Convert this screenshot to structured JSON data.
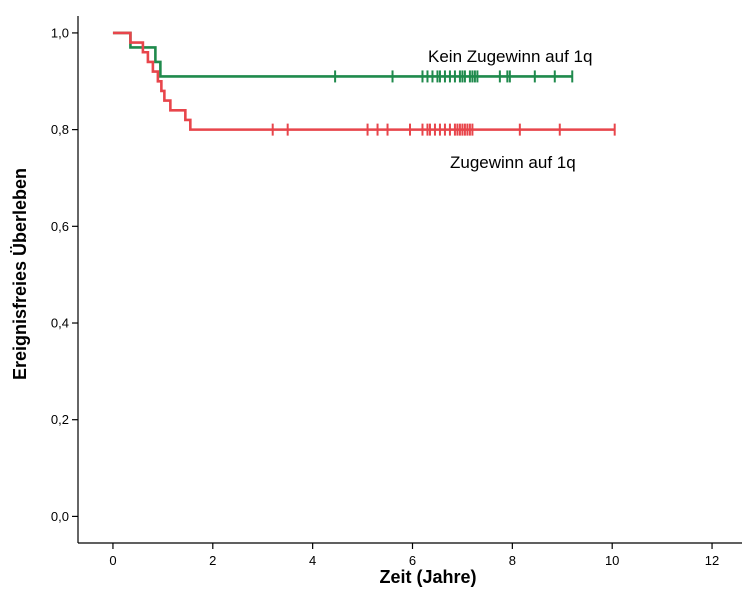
{
  "chart_data": {
    "type": "line",
    "subtype": "kaplan-meier",
    "xlabel": "Zeit (Jahre)",
    "ylabel": "Ereignisfreies Überleben",
    "xlim": [
      -0.7,
      12.6
    ],
    "ylim": [
      -0.055,
      1.035
    ],
    "x_ticks": [
      "0",
      "2",
      "4",
      "6",
      "8",
      "10",
      "12"
    ],
    "y_ticks": [
      "0,0",
      "0,2",
      "0,4",
      "0,6",
      "0,8",
      "1,0"
    ],
    "grid": false,
    "legend": "none",
    "series": [
      {
        "name": "Kein Zugewinn auf 1q",
        "color": "#1f8a4c",
        "steps": [
          [
            0,
            1.0
          ],
          [
            0.35,
            0.97
          ],
          [
            0.85,
            0.94
          ],
          [
            0.95,
            0.91
          ],
          [
            9.2,
            0.91
          ]
        ],
        "censored": [
          4.45,
          5.6,
          6.2,
          6.3,
          6.4,
          6.5,
          6.55,
          6.65,
          6.75,
          6.85,
          6.95,
          7.0,
          7.05,
          7.15,
          7.2,
          7.25,
          7.3,
          7.75,
          7.9,
          7.95,
          8.45,
          8.85,
          9.2
        ]
      },
      {
        "name": "Zugewinn auf 1q",
        "color": "#e8454b",
        "steps": [
          [
            0,
            1.0
          ],
          [
            0.35,
            0.98
          ],
          [
            0.6,
            0.96
          ],
          [
            0.7,
            0.94
          ],
          [
            0.8,
            0.92
          ],
          [
            0.9,
            0.9
          ],
          [
            0.97,
            0.88
          ],
          [
            1.03,
            0.86
          ],
          [
            1.15,
            0.84
          ],
          [
            1.45,
            0.82
          ],
          [
            1.55,
            0.8
          ],
          [
            10.05,
            0.8
          ]
        ],
        "censored": [
          3.2,
          3.5,
          5.1,
          5.3,
          5.5,
          5.95,
          6.2,
          6.3,
          6.35,
          6.45,
          6.55,
          6.65,
          6.75,
          6.85,
          6.9,
          6.95,
          7.0,
          7.05,
          7.1,
          7.15,
          7.2,
          8.15,
          8.95,
          10.05
        ]
      }
    ]
  }
}
